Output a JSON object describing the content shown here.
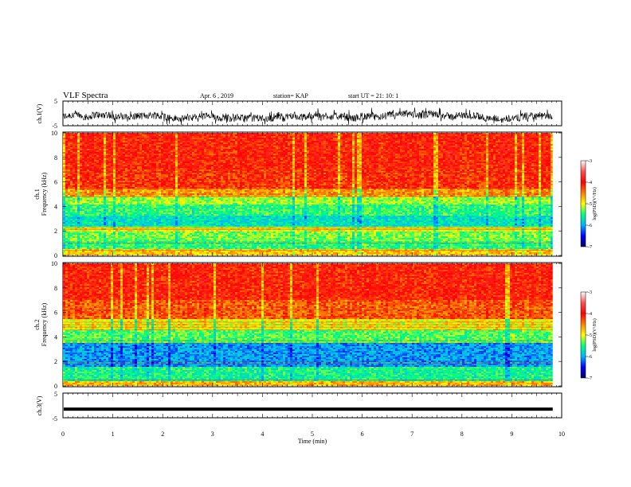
{
  "header": {
    "title": "VLF Spectra",
    "date": "Apr. 6 , 2019",
    "station": "station= KAP",
    "start_time": "start UT = 21: 10: 1"
  },
  "colormap": {
    "stops": [
      "#000064",
      "#0000ff",
      "#00b4ff",
      "#00ff80",
      "#ffff00",
      "#ff8000",
      "#ff0000",
      "#ff5050",
      "#ffffff"
    ]
  },
  "chart_data": [
    {
      "type": "line",
      "id": "ch1-waveform",
      "ylabel": "ch.1(V)",
      "ylim": [
        -5,
        5
      ],
      "yticklabels": [
        "5",
        "-5"
      ],
      "xlim": [
        0,
        10
      ],
      "description_values": {
        "mean": -1.5,
        "amplitude_range": [
          -3.5,
          1.5
        ]
      }
    },
    {
      "type": "heatmap",
      "id": "ch1-spectrogram",
      "ylabel_top": "ch.1",
      "ylabel": "Frequency (kHz)",
      "ylim": [
        0,
        10
      ],
      "yticklabels": [
        "0",
        "2",
        "4",
        "6",
        "8",
        "10"
      ],
      "xlim": [
        0,
        10
      ],
      "data_end_min": 9.82,
      "colorbar": {
        "label": "log(PSD)(V²/Hz)",
        "range": [
          -7,
          -3
        ],
        "ticklabels": [
          "-3",
          "-4",
          "-5",
          "-6",
          "-7"
        ]
      },
      "bands": [
        {
          "from": 0.0,
          "to": 0.5,
          "level": -4.4
        },
        {
          "from": 0.5,
          "to": 1.2,
          "level": -5.2
        },
        {
          "from": 1.2,
          "to": 2.0,
          "level": -5.0
        },
        {
          "from": 2.0,
          "to": 2.4,
          "level": -4.6
        },
        {
          "from": 2.4,
          "to": 3.2,
          "level": -5.5
        },
        {
          "from": 3.2,
          "to": 4.2,
          "level": -5.2
        },
        {
          "from": 4.2,
          "to": 4.8,
          "level": -4.9
        },
        {
          "from": 4.8,
          "to": 5.5,
          "level": -4.2
        },
        {
          "from": 5.5,
          "to": 7.0,
          "level": -3.7
        },
        {
          "from": 7.0,
          "to": 10.0,
          "level": -3.6
        }
      ],
      "lines_khz": [
        0.4,
        1.0,
        2.1,
        2.25,
        4.8,
        5.0,
        5.4,
        6.8
      ]
    },
    {
      "type": "heatmap",
      "id": "ch2-spectrogram",
      "ylabel_top": "ch.2",
      "ylabel": "Frequency (kHz)",
      "ylim": [
        0,
        10
      ],
      "yticklabels": [
        "0",
        "2",
        "4",
        "6",
        "8",
        "10"
      ],
      "xlim": [
        0,
        10
      ],
      "data_end_min": 9.82,
      "colorbar": {
        "label": "log(PSD)(V²/Hz)",
        "range": [
          -7,
          -3
        ],
        "ticklabels": [
          "-3",
          "-4",
          "-5",
          "-6",
          "-7"
        ]
      },
      "bands": [
        {
          "from": 0.0,
          "to": 0.4,
          "level": -4.3
        },
        {
          "from": 0.4,
          "to": 1.5,
          "level": -5.3
        },
        {
          "from": 1.5,
          "to": 3.5,
          "level": -5.9
        },
        {
          "from": 3.5,
          "to": 4.5,
          "level": -5.1
        },
        {
          "from": 4.5,
          "to": 5.5,
          "level": -4.6
        },
        {
          "from": 5.5,
          "to": 7.0,
          "level": -3.9
        },
        {
          "from": 7.0,
          "to": 10.0,
          "level": -3.6
        }
      ],
      "lines_khz": [
        0.5,
        1.8,
        2.0,
        3.5,
        3.7,
        4.6,
        4.8,
        5.0,
        5.2,
        6.2
      ]
    },
    {
      "type": "line",
      "id": "ch3-waveform",
      "ylabel": "ch.3(V)",
      "ylim": [
        -5,
        5
      ],
      "yticklabels": [
        "5",
        "-5"
      ],
      "xlim": [
        0,
        10
      ],
      "xlabel": "Time (min)",
      "xticklabels": [
        "0",
        "1",
        "2",
        "3",
        "4",
        "5",
        "6",
        "7",
        "8",
        "9",
        "10"
      ],
      "constant_value": -1.5
    }
  ]
}
